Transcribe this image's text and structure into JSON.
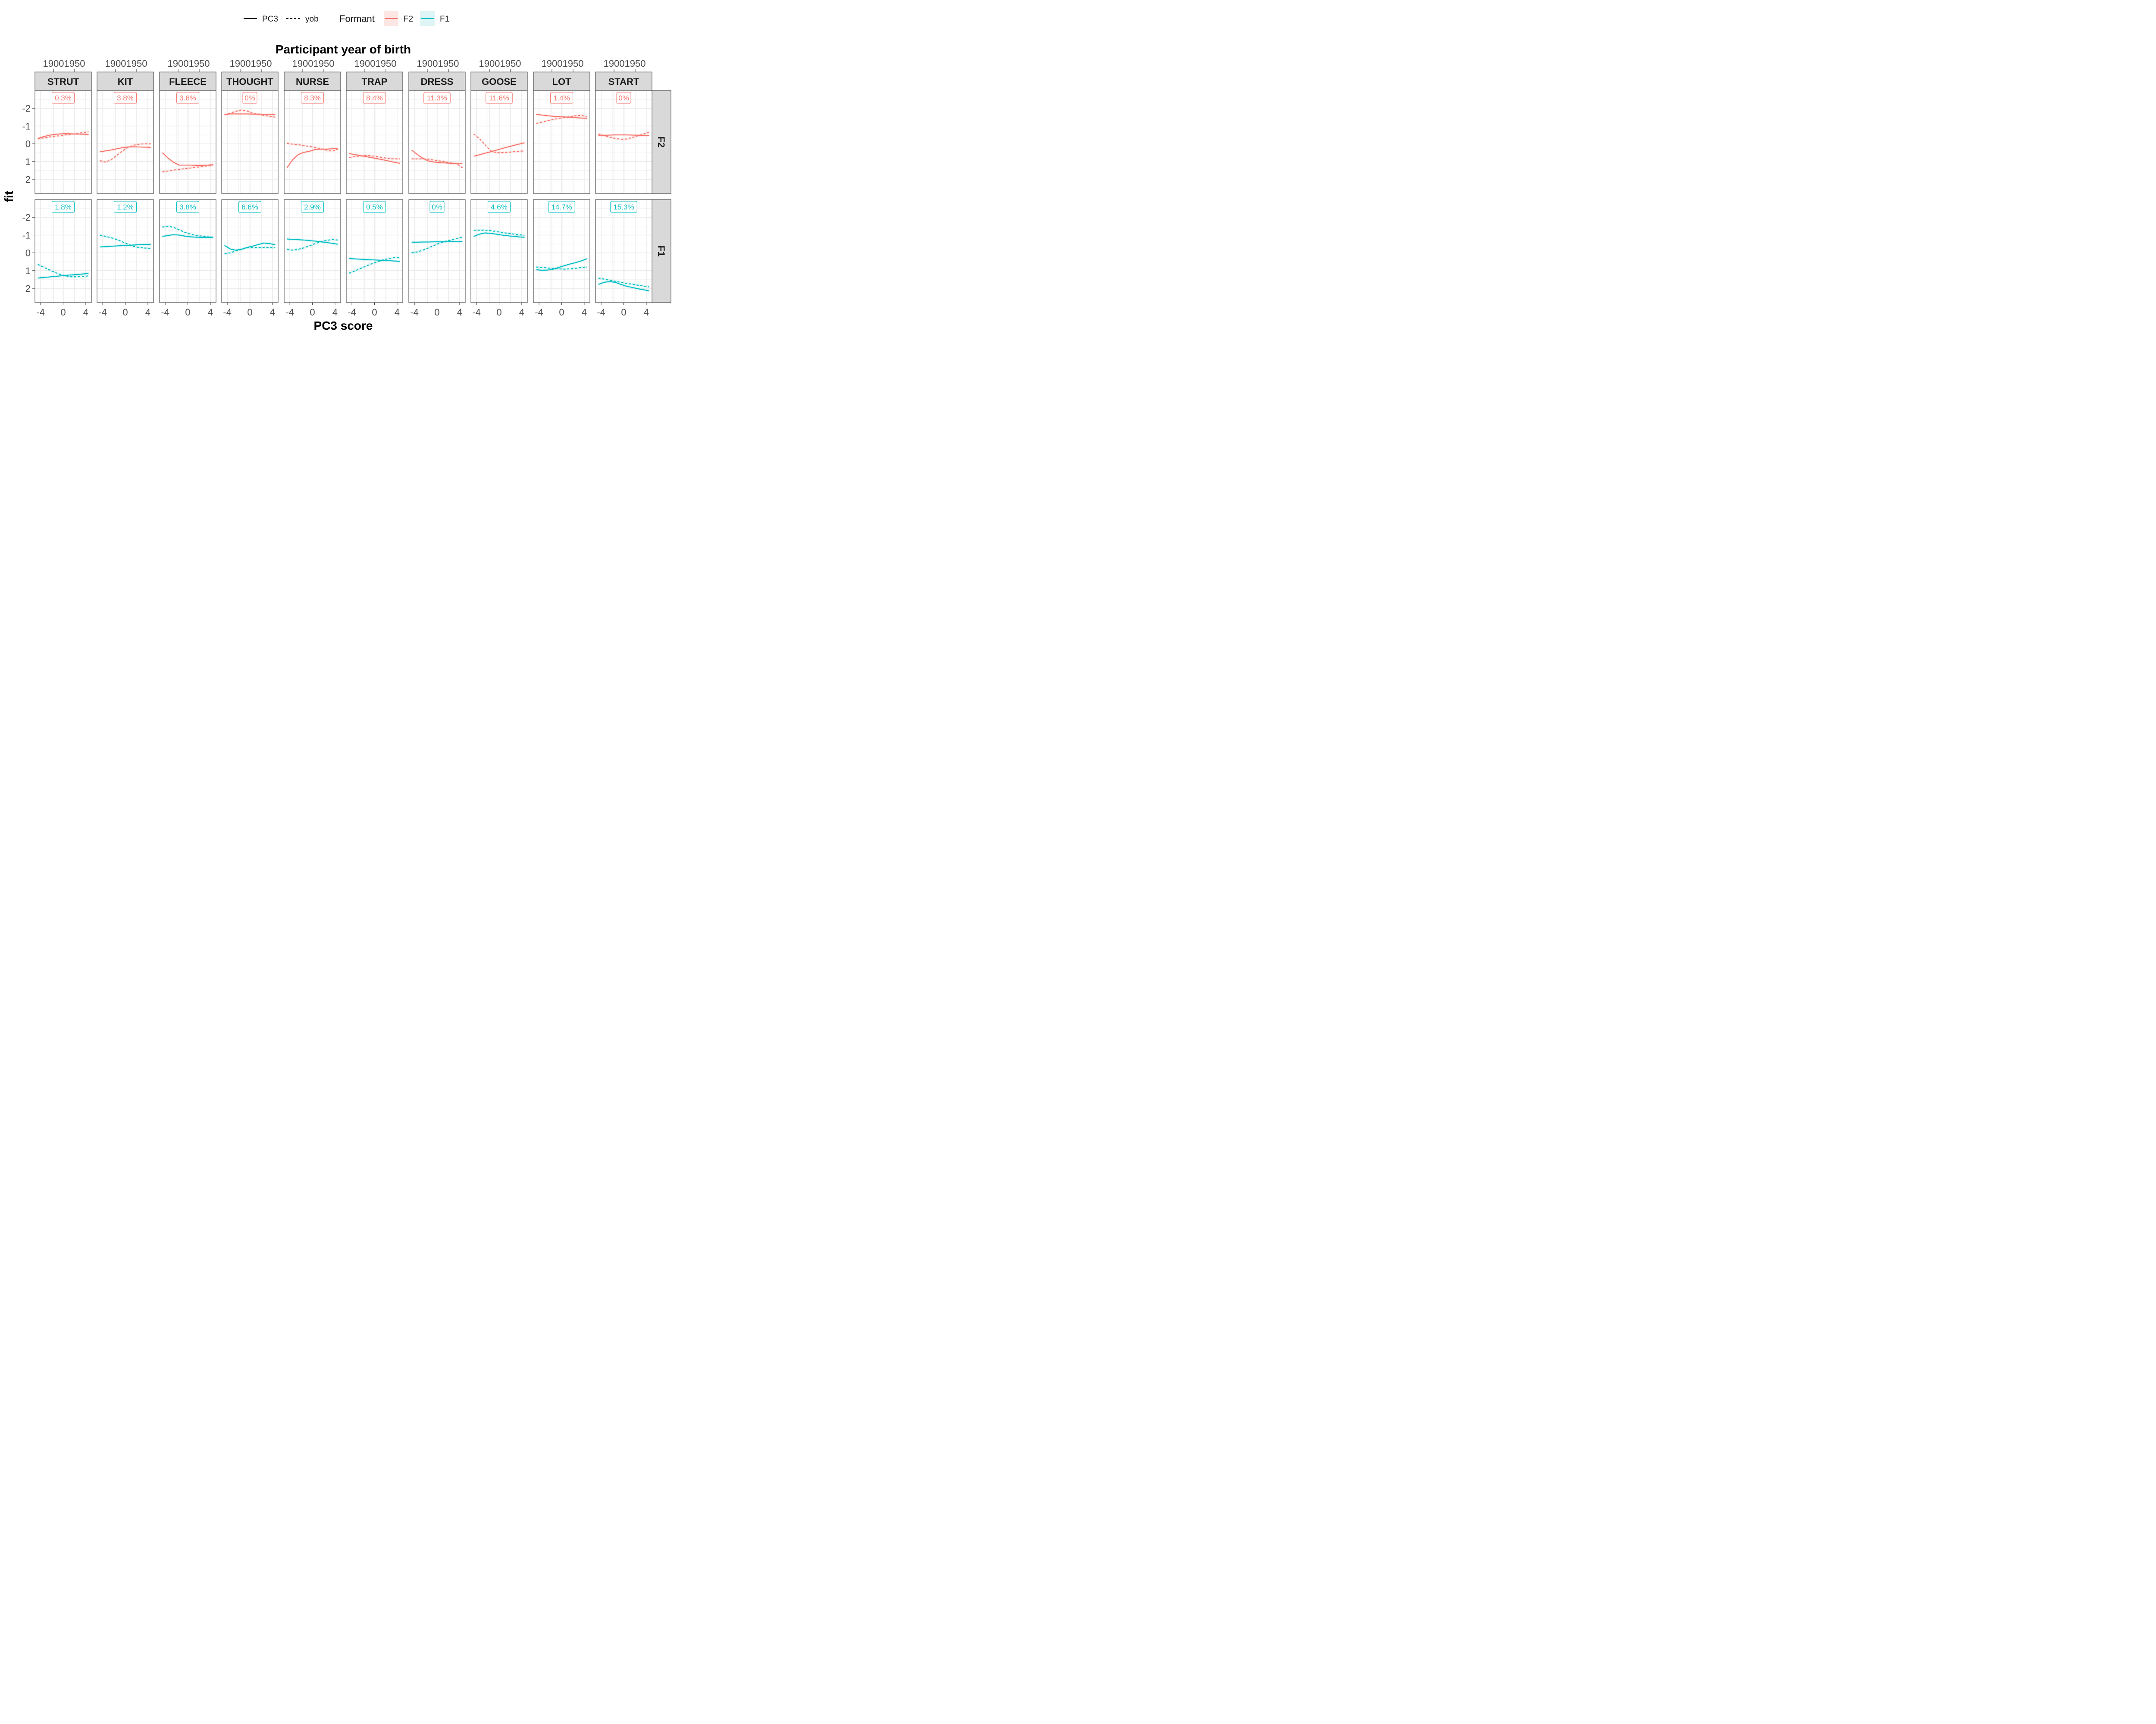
{
  "chart_data": {
    "type": "line",
    "title": "",
    "top_axis_title": "Participant year of birth",
    "top_axis_ticks": [
      "1900",
      "1950"
    ],
    "xlabel": "PC3 score",
    "ylabel": "fit",
    "xlim": [
      -5,
      5
    ],
    "x_ticks": [
      -4,
      0,
      4
    ],
    "x_tick_labels": [
      "-4",
      "0",
      "4"
    ],
    "ylim": [
      2.8,
      -3.0
    ],
    "y_reversed": true,
    "y_ticks": [
      -2,
      -1,
      0,
      1,
      2
    ],
    "y_tick_labels": [
      "-2",
      "-1",
      "0",
      "1",
      "2"
    ],
    "grid": true,
    "legend_position": "top",
    "legend": {
      "linetype_items": [
        {
          "label": "PC3",
          "dash": "solid"
        },
        {
          "label": "yob",
          "dash": "dashed"
        }
      ],
      "formant_title": "Formant",
      "formant_items": [
        {
          "label": "F2",
          "color": "#F8766D"
        },
        {
          "label": "F1",
          "color": "#00BFC4"
        }
      ]
    },
    "colors": {
      "F2": "#F8766D",
      "F1": "#00BFC4"
    },
    "columns": [
      "STRUT",
      "KIT",
      "FLEECE",
      "THOUGHT",
      "NURSE",
      "TRAP",
      "DRESS",
      "GOOSE",
      "LOT",
      "START"
    ],
    "rows": [
      "F2",
      "F1"
    ],
    "x_points": [
      -4.5,
      -3.5,
      -2.5,
      -1.5,
      -0.5,
      0.5,
      1.5,
      2.5,
      3.5,
      4.5
    ],
    "panels": {
      "F2": {
        "STRUT": {
          "pct": "0.3%",
          "pc3": [
            -0.3,
            -0.4,
            -0.48,
            -0.53,
            -0.56,
            -0.57,
            -0.56,
            -0.55,
            -0.54,
            -0.53
          ],
          "yob": [
            -0.27,
            -0.33,
            -0.38,
            -0.42,
            -0.46,
            -0.5,
            -0.54,
            -0.58,
            -0.63,
            -0.68
          ]
        },
        "KIT": {
          "pct": "3.8%",
          "pc3": [
            0.45,
            0.4,
            0.35,
            0.28,
            0.22,
            0.18,
            0.17,
            0.18,
            0.19,
            0.2
          ],
          "yob": [
            0.95,
            1.03,
            0.9,
            0.65,
            0.4,
            0.2,
            0.08,
            0.02,
            0.0,
            0.0
          ]
        },
        "FLEECE": {
          "pct": "3.6%",
          "pc3": [
            0.5,
            0.8,
            1.05,
            1.2,
            1.2,
            1.2,
            1.22,
            1.22,
            1.2,
            1.18
          ],
          "yob": [
            1.58,
            1.53,
            1.48,
            1.44,
            1.4,
            1.36,
            1.32,
            1.28,
            1.24,
            1.2
          ]
        },
        "THOUGHT": {
          "pct": "0%",
          "pc3": [
            -1.65,
            -1.68,
            -1.68,
            -1.68,
            -1.68,
            -1.67,
            -1.67,
            -1.66,
            -1.66,
            -1.65
          ],
          "yob": [
            -1.62,
            -1.72,
            -1.83,
            -1.9,
            -1.85,
            -1.72,
            -1.65,
            -1.6,
            -1.55,
            -1.5
          ]
        },
        "NURSE": {
          "pct": "8.3%",
          "pc3": [
            1.35,
            0.9,
            0.6,
            0.48,
            0.42,
            0.32,
            0.3,
            0.3,
            0.28,
            0.26
          ],
          "yob": [
            -0.02,
            0.02,
            0.05,
            0.1,
            0.15,
            0.2,
            0.28,
            0.36,
            0.42,
            0.3
          ]
        },
        "TRAP": {
          "pct": "8.4%",
          "pc3": [
            0.55,
            0.61,
            0.67,
            0.72,
            0.78,
            0.84,
            0.9,
            0.97,
            1.04,
            1.1
          ],
          "yob": [
            0.78,
            0.72,
            0.68,
            0.66,
            0.68,
            0.72,
            0.78,
            0.83,
            0.85,
            0.85
          ]
        },
        "DRESS": {
          "pct": "11.3%",
          "pc3": [
            0.35,
            0.6,
            0.82,
            0.97,
            1.03,
            1.06,
            1.08,
            1.1,
            1.12,
            1.12
          ],
          "yob": [
            0.85,
            0.85,
            0.85,
            0.87,
            0.92,
            0.97,
            1.02,
            1.08,
            1.12,
            1.35
          ]
        },
        "GOOSE": {
          "pct": "11.6%",
          "pc3": [
            0.7,
            0.62,
            0.53,
            0.45,
            0.36,
            0.27,
            0.18,
            0.1,
            0.02,
            -0.06
          ],
          "yob": [
            -0.55,
            -0.3,
            0.05,
            0.4,
            0.5,
            0.5,
            0.48,
            0.45,
            0.42,
            0.4
          ]
        },
        "LOT": {
          "pct": "1.4%",
          "pc3": [
            -1.65,
            -1.62,
            -1.58,
            -1.55,
            -1.53,
            -1.51,
            -1.49,
            -1.47,
            -1.45,
            -1.43
          ],
          "yob": [
            -1.15,
            -1.22,
            -1.3,
            -1.37,
            -1.43,
            -1.48,
            -1.53,
            -1.58,
            -1.6,
            -1.52
          ]
        },
        "START": {
          "pct": "0%",
          "pc3": [
            -0.45,
            -0.47,
            -0.49,
            -0.5,
            -0.5,
            -0.5,
            -0.49,
            -0.48,
            -0.47,
            -0.47
          ],
          "yob": [
            -0.55,
            -0.47,
            -0.38,
            -0.3,
            -0.25,
            -0.27,
            -0.35,
            -0.45,
            -0.55,
            -0.65
          ]
        }
      },
      "F1": {
        "STRUT": {
          "pct": "1.8%",
          "pc3": [
            1.42,
            1.39,
            1.36,
            1.33,
            1.3,
            1.27,
            1.24,
            1.22,
            1.19,
            1.16
          ],
          "yob": [
            0.65,
            0.8,
            0.95,
            1.1,
            1.22,
            1.3,
            1.35,
            1.35,
            1.33,
            1.3
          ]
        },
        "KIT": {
          "pct": "1.2%",
          "pc3": [
            -0.33,
            -0.35,
            -0.37,
            -0.39,
            -0.41,
            -0.42,
            -0.44,
            -0.46,
            -0.47,
            -0.48
          ],
          "yob": [
            -1.0,
            -0.93,
            -0.85,
            -0.75,
            -0.62,
            -0.48,
            -0.36,
            -0.3,
            -0.27,
            -0.25
          ]
        },
        "FLEECE": {
          "pct": "3.8%",
          "pc3": [
            -0.92,
            -0.98,
            -1.02,
            -1.0,
            -0.94,
            -0.9,
            -0.88,
            -0.87,
            -0.87,
            -0.87
          ],
          "yob": [
            -1.45,
            -1.5,
            -1.43,
            -1.3,
            -1.15,
            -1.05,
            -0.98,
            -0.94,
            -0.9,
            -0.88
          ]
        },
        "THOUGHT": {
          "pct": "6.6%",
          "pc3": [
            -0.42,
            -0.22,
            -0.15,
            -0.2,
            -0.3,
            -0.38,
            -0.47,
            -0.55,
            -0.52,
            -0.45
          ],
          "yob": [
            0.05,
            0.0,
            -0.1,
            -0.2,
            -0.28,
            -0.3,
            -0.3,
            -0.3,
            -0.3,
            -0.28
          ]
        },
        "NURSE": {
          "pct": "2.9%",
          "pc3": [
            -0.78,
            -0.76,
            -0.74,
            -0.72,
            -0.69,
            -0.66,
            -0.62,
            -0.58,
            -0.54,
            -0.48
          ],
          "yob": [
            -0.2,
            -0.15,
            -0.2,
            -0.28,
            -0.4,
            -0.52,
            -0.62,
            -0.7,
            -0.75,
            -0.72
          ]
        },
        "TRAP": {
          "pct": "0.5%",
          "pc3": [
            0.32,
            0.34,
            0.36,
            0.38,
            0.39,
            0.41,
            0.43,
            0.44,
            0.46,
            0.48
          ],
          "yob": [
            1.15,
            1.02,
            0.88,
            0.75,
            0.62,
            0.5,
            0.4,
            0.32,
            0.27,
            0.28
          ]
        },
        "DRESS": {
          "pct": "0%",
          "pc3": [
            -0.6,
            -0.6,
            -0.61,
            -0.61,
            -0.62,
            -0.62,
            -0.62,
            -0.63,
            -0.63,
            -0.64
          ],
          "yob": [
            0.0,
            -0.05,
            -0.15,
            -0.28,
            -0.42,
            -0.55,
            -0.65,
            -0.72,
            -0.8,
            -0.88
          ]
        },
        "GOOSE": {
          "pct": "4.6%",
          "pc3": [
            -0.92,
            -1.05,
            -1.12,
            -1.1,
            -1.05,
            -1.0,
            -0.96,
            -0.93,
            -0.9,
            -0.87
          ],
          "yob": [
            -1.27,
            -1.28,
            -1.28,
            -1.25,
            -1.2,
            -1.15,
            -1.1,
            -1.06,
            -1.02,
            -0.98
          ]
        },
        "LOT": {
          "pct": "14.7%",
          "pc3": [
            0.95,
            0.98,
            0.97,
            0.92,
            0.82,
            0.72,
            0.63,
            0.55,
            0.45,
            0.33
          ],
          "yob": [
            0.8,
            0.82,
            0.85,
            0.88,
            0.9,
            0.92,
            0.9,
            0.87,
            0.83,
            0.8
          ]
        },
        "START": {
          "pct": "15.3%",
          "pc3": [
            1.78,
            1.66,
            1.62,
            1.66,
            1.78,
            1.88,
            1.95,
            2.02,
            2.08,
            2.14
          ],
          "yob": [
            1.42,
            1.48,
            1.54,
            1.6,
            1.66,
            1.72,
            1.77,
            1.82,
            1.87,
            1.92
          ]
        }
      }
    }
  }
}
